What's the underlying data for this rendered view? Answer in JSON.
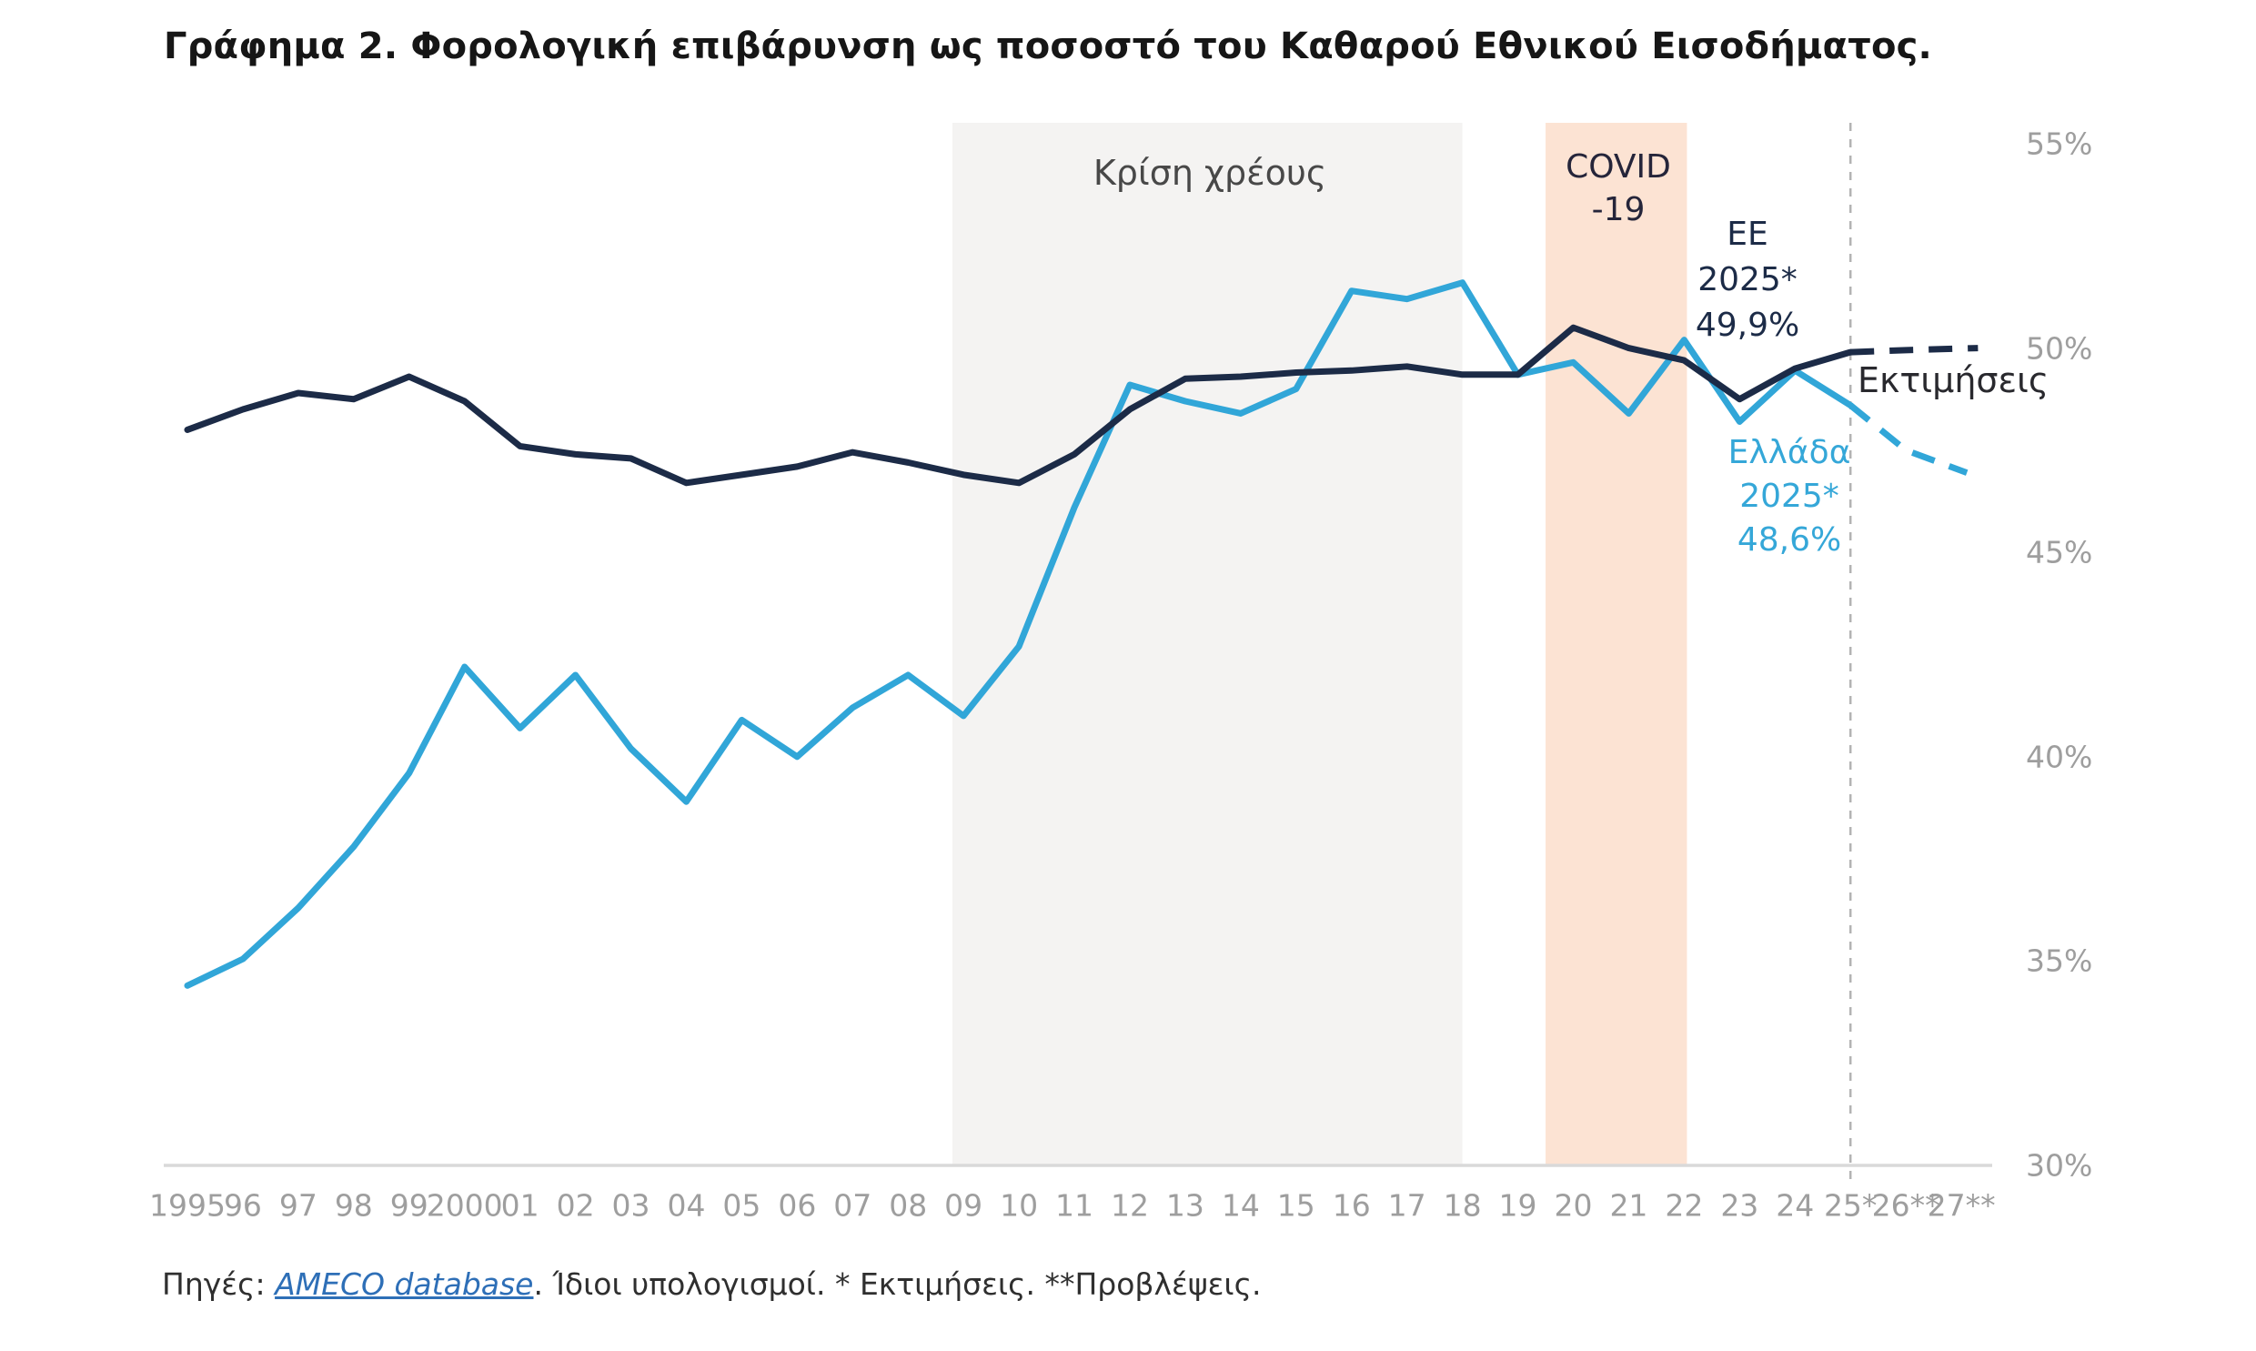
{
  "title": "Γράφημα 2. Φορολογική επιβάρυνση ως ποσοστό του Καθαρού Εθνικού Εισοδήματος.",
  "annotations": {
    "debt_crisis": "Κρίση χρέους",
    "covid": [
      "COVID",
      "-19"
    ],
    "ee": [
      "EE",
      "2025*",
      "49,9%"
    ],
    "greece": [
      "Ελλάδα",
      "2025*",
      "48,6%"
    ],
    "estimates": "Εκτιμήσεις"
  },
  "footer": {
    "prefix": "Πηγές: ",
    "link": "AMECO database",
    "suffix": ". Ίδιοι υπολογισμοί.  * Εκτιμήσεις.  **Προβλέψεις."
  },
  "colors": {
    "ee_line": "#1c2b47",
    "greece_line": "#31a6d8",
    "debt_band": "#f4f3f2",
    "covid_band": "#fce3d3",
    "axis_line": "#d9d9d9",
    "tick_text": "#9e9e9e",
    "divider_line": "#b3b3b3"
  },
  "chart_data": {
    "type": "line",
    "unit": "%",
    "grid": "off",
    "legend": "inline-annotations",
    "y_axis": {
      "min": 30,
      "max": 55,
      "side": "right",
      "ticks": [
        {
          "value": 55,
          "label": "55%"
        },
        {
          "value": 50,
          "label": "50%"
        },
        {
          "value": 45,
          "label": "45%"
        },
        {
          "value": 40,
          "label": "40%"
        },
        {
          "value": 35,
          "label": "35%"
        },
        {
          "value": 30,
          "label": "30%"
        }
      ]
    },
    "x_axis": {
      "tick_years": [
        1995,
        1996,
        1997,
        1998,
        1999,
        2000,
        2001,
        2002,
        2003,
        2004,
        2005,
        2006,
        2007,
        2008,
        2009,
        2010,
        2011,
        2012,
        2013,
        2014,
        2015,
        2016,
        2017,
        2018,
        2019,
        2020,
        2021,
        2022,
        2023,
        2024,
        2025,
        2026,
        2027
      ],
      "tick_labels": [
        "1995",
        "96",
        "97",
        "98",
        "99",
        "2000",
        "01",
        "02",
        "03",
        "04",
        "05",
        "06",
        "07",
        "08",
        "09",
        "10",
        "11",
        "12",
        "13",
        "14",
        "15",
        "16",
        "17",
        "18",
        "19",
        "20",
        "21",
        "22",
        "23",
        "24",
        "25*",
        "26**",
        "27**"
      ]
    },
    "bands": [
      {
        "name": "debt-crisis-band",
        "from_year": 2008.8,
        "to_year": 2018.0,
        "color": "#f4f3f2",
        "label": "Κρίση χρέους"
      },
      {
        "name": "covid-band",
        "from_year": 2019.5,
        "to_year": 2022.05,
        "color": "#fce3d3",
        "label": "COVID -19"
      }
    ],
    "estimates_divider_year": 2025,
    "x_years": [
      1995,
      1996,
      1997,
      1998,
      1999,
      2000,
      2001,
      2002,
      2003,
      2004,
      2005,
      2006,
      2007,
      2008,
      2009,
      2010,
      2011,
      2012,
      2013,
      2014,
      2015,
      2016,
      2017,
      2018,
      2019,
      2020,
      2021,
      2022,
      2023,
      2024,
      2025
    ],
    "series": [
      {
        "name": "EE",
        "color": "#1c2b47",
        "values": [
          48.0,
          48.5,
          48.9,
          48.75,
          49.3,
          48.7,
          47.6,
          47.4,
          47.3,
          46.7,
          46.9,
          47.1,
          47.45,
          47.2,
          46.9,
          46.7,
          47.4,
          48.5,
          49.25,
          49.3,
          49.4,
          49.45,
          49.55,
          49.35,
          49.35,
          50.5,
          50.0,
          49.7,
          48.75,
          49.5,
          49.9
        ],
        "value_2025": "49,9%",
        "projection": {
          "years": [
            2025,
            2026,
            2027.3
          ],
          "values": [
            49.9,
            49.95,
            50.0
          ]
        }
      },
      {
        "name": "Ελλάδα",
        "color": "#31a6d8",
        "values": [
          34.4,
          35.05,
          36.3,
          37.8,
          39.6,
          42.2,
          40.7,
          42.0,
          40.2,
          38.9,
          40.9,
          40.0,
          41.2,
          42.0,
          41.0,
          42.7,
          46.1,
          49.1,
          48.7,
          48.4,
          49.0,
          51.4,
          51.2,
          51.6,
          49.35,
          49.65,
          48.4,
          50.2,
          48.2,
          49.45,
          48.6
        ],
        "value_2025": "48,6%",
        "projection": {
          "years": [
            2025,
            2026,
            2027.1
          ],
          "values": [
            48.6,
            47.5,
            46.95
          ]
        }
      }
    ]
  }
}
